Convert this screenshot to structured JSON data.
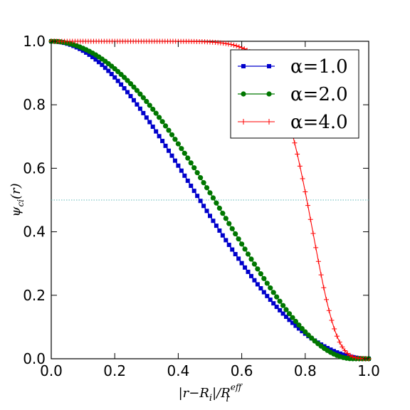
{
  "chart_data": {
    "type": "line",
    "title": "",
    "xlabel": "|r−R_i|/R_i^eff",
    "ylabel": "ψ_ci(r)",
    "xlim": [
      0.0,
      1.0
    ],
    "ylim": [
      0.0,
      1.0
    ],
    "x_ticks": [
      "0.0",
      "0.2",
      "0.4",
      "0.6",
      "0.8",
      "1.0"
    ],
    "y_ticks": [
      "0.0",
      "0.2",
      "0.4",
      "0.6",
      "0.8",
      "1.0"
    ],
    "grid": false,
    "legend_position": "top-right",
    "reference_line": {
      "y": 0.5,
      "style": "dotted",
      "color": "#5fb8b8"
    },
    "series": [
      {
        "name": "α=1.0",
        "alpha": 1.0,
        "color": "#0000cc",
        "marker": "square",
        "formula": "(1 - x^2)^2 / (1 + x^2)"
      },
      {
        "name": "α=2.0",
        "alpha": 2.0,
        "color": "#007700",
        "marker": "circle",
        "formula": "(1 - (x/0.95)^2)^2"
      },
      {
        "name": "α=4.0",
        "alpha": 4.0,
        "color": "#ff0000",
        "marker": "plus",
        "formula": "exp(-(x/0.83)^12)"
      }
    ]
  },
  "legend": {
    "entries": [
      "α=1.0",
      "α=2.0",
      "α=4.0"
    ]
  },
  "axes": {
    "xlabel_main": "|r−R",
    "xlabel_sub_i": "i",
    "xlabel_mid": "|/R",
    "xlabel_sup": "eff",
    "ylabel_main": "ψ",
    "ylabel_sub": "ci",
    "ylabel_tail": "(r)"
  }
}
